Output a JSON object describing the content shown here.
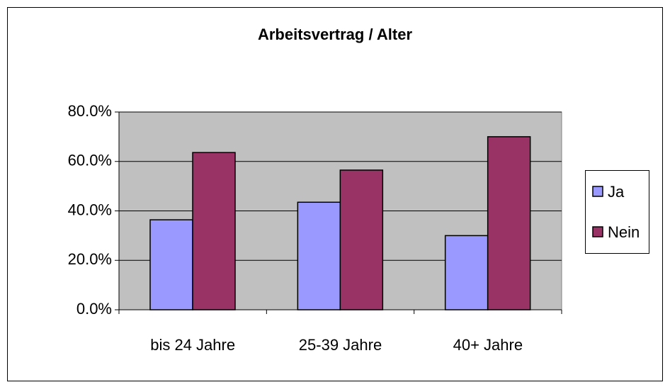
{
  "chart_data": {
    "type": "bar",
    "title": "Arbeitsvertrag / Alter",
    "categories": [
      "bis 24 Jahre",
      "25-39 Jahre",
      "40+ Jahre"
    ],
    "series": [
      {
        "name": "Ja",
        "color": "#9999ff",
        "values": [
          36.4,
          43.5,
          30.0
        ]
      },
      {
        "name": "Nein",
        "color": "#993366",
        "values": [
          63.6,
          56.5,
          70.0
        ]
      }
    ],
    "ylim": [
      0,
      80
    ],
    "yticks": [
      {
        "value": 0,
        "label": "0.0%"
      },
      {
        "value": 20,
        "label": "20.0%"
      },
      {
        "value": 40,
        "label": "40.0%"
      },
      {
        "value": 60,
        "label": "60.0%"
      },
      {
        "value": 80,
        "label": "80.0%"
      }
    ],
    "grid": true,
    "legend": "right"
  }
}
